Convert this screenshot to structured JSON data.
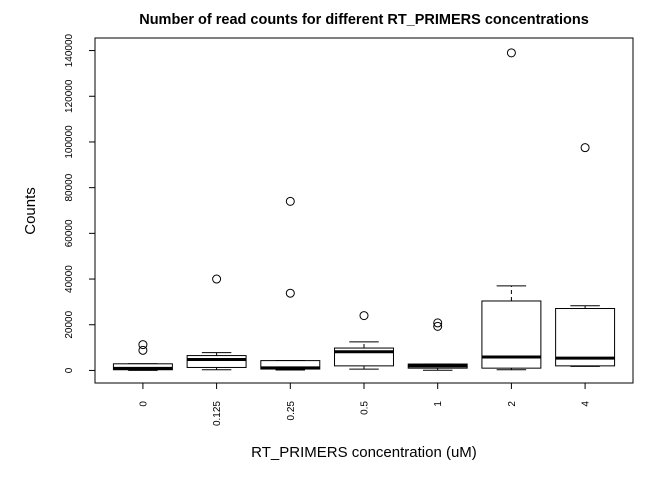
{
  "chart_data": {
    "type": "boxplot",
    "title": "Number of read counts for different RT_PRIMERS concentrations",
    "xlabel": "RT_PRIMERS concentration (uM)",
    "ylabel": "Counts",
    "ylim": [
      -5500,
      145500
    ],
    "y_ticks": [
      0,
      20000,
      40000,
      60000,
      80000,
      100000,
      120000,
      140000
    ],
    "grid": false,
    "legend": "none",
    "categories": [
      "0",
      "0.125",
      "0.25",
      "0.5",
      "1",
      "2",
      "4"
    ],
    "boxes": [
      {
        "category": "0",
        "whisker_low": 0,
        "q1": 300,
        "median": 900,
        "q3": 2900,
        "whisker_high": 2900,
        "outliers": [
          11300,
          8800
        ]
      },
      {
        "category": "0.125",
        "whisker_low": 300,
        "q1": 1300,
        "median": 4800,
        "q3": 6500,
        "whisker_high": 7800,
        "outliers": [
          40000
        ]
      },
      {
        "category": "0.25",
        "whisker_low": 200,
        "q1": 600,
        "median": 1100,
        "q3": 4300,
        "whisker_high": 4300,
        "outliers": [
          74000,
          33800
        ]
      },
      {
        "category": "0.5",
        "whisker_low": 600,
        "q1": 2000,
        "median": 8200,
        "q3": 9800,
        "whisker_high": 12500,
        "outliers": [
          24000
        ]
      },
      {
        "category": "1",
        "whisker_low": 100,
        "q1": 1000,
        "median": 2000,
        "q3": 2800,
        "whisker_high": 2800,
        "outliers": [
          20800,
          19300
        ]
      },
      {
        "category": "2",
        "whisker_low": 300,
        "q1": 1000,
        "median": 5900,
        "q3": 30400,
        "whisker_high": 37000,
        "outliers": [
          139000
        ]
      },
      {
        "category": "4",
        "whisker_low": 1800,
        "q1": 2000,
        "median": 5400,
        "q3": 27100,
        "whisker_high": 28300,
        "outliers": [
          97500
        ]
      }
    ]
  }
}
